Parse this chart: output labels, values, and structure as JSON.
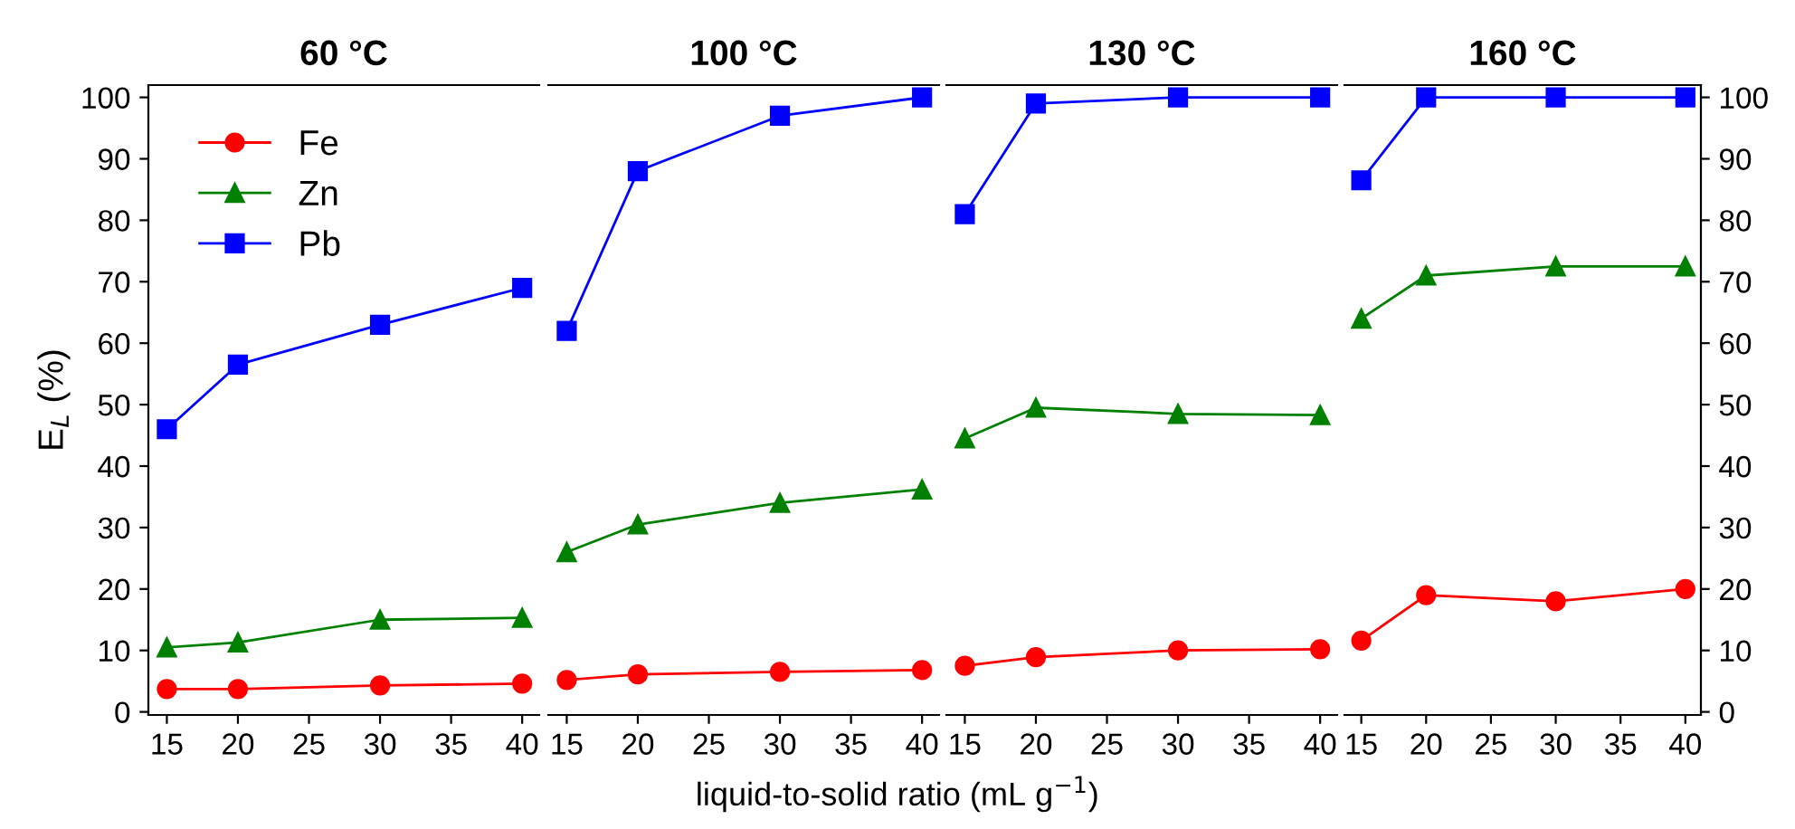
{
  "chart_data": [
    {
      "type": "line",
      "title": "60 °C",
      "ylabel": "E$_{L}$ (%)",
      "xlabel": "liquid-to-solid ratio (mL g$^{−1}$)",
      "x": [
        15,
        20,
        30,
        40
      ],
      "xlim": [
        13.7,
        41.2
      ],
      "xticks": [
        15,
        20,
        25,
        30,
        35,
        40
      ],
      "ylim": [
        -0.5,
        102
      ],
      "yticks": [
        0,
        10,
        20,
        30,
        40,
        50,
        60,
        70,
        80,
        90,
        100
      ],
      "legend": "top left",
      "series": [
        {
          "name": "Fe",
          "color": "#ff0000",
          "marker": "circle",
          "values": [
            3.7,
            3.7,
            4.3,
            4.6
          ]
        },
        {
          "name": "Zn",
          "color": "#008000",
          "marker": "triangle",
          "values": [
            10.5,
            11.3,
            15,
            15.3
          ]
        },
        {
          "name": "Pb",
          "color": "#0000ff",
          "marker": "square",
          "values": [
            46,
            56.5,
            63,
            69
          ]
        }
      ]
    },
    {
      "type": "line",
      "title": "100 °C",
      "x": [
        15,
        20,
        30,
        40
      ],
      "xlim": [
        13.7,
        41.2
      ],
      "xticks": [
        15,
        20,
        25,
        30,
        35,
        40
      ],
      "ylim": [
        -0.5,
        102
      ],
      "tick_labels": "x",
      "series": [
        {
          "color": "#ff0000",
          "marker": "circle",
          "values": [
            5.2,
            6.1,
            6.5,
            6.8
          ]
        },
        {
          "color": "#008000",
          "marker": "triangle",
          "values": [
            26,
            30.5,
            34,
            36.2
          ]
        },
        {
          "color": "#0000ff",
          "marker": "square",
          "values": [
            62,
            88,
            97,
            100
          ]
        }
      ]
    },
    {
      "type": "line",
      "title": "130 °C",
      "x": [
        15,
        20,
        30,
        40
      ],
      "xlim": [
        13.7,
        41.2
      ],
      "xticks": [
        15,
        20,
        25,
        30,
        35,
        40
      ],
      "ylim": [
        -0.5,
        102
      ],
      "tick_labels": "x",
      "series": [
        {
          "color": "#ff0000",
          "marker": "circle",
          "values": [
            7.5,
            8.9,
            10,
            10.2
          ]
        },
        {
          "color": "#008000",
          "marker": "triangle",
          "values": [
            44.5,
            49.5,
            48.5,
            48.3
          ]
        },
        {
          "color": "#0000ff",
          "marker": "square",
          "values": [
            81,
            99,
            100,
            100
          ]
        }
      ]
    },
    {
      "type": "line",
      "title": "160 °C",
      "x": [
        15,
        20,
        30,
        40
      ],
      "xlim": [
        13.7,
        41.2
      ],
      "xticks": [
        15,
        20,
        25,
        30,
        35,
        40
      ],
      "y2lim": [
        -0.5,
        102
      ],
      "y2ticks": [
        0,
        10,
        20,
        30,
        40,
        50,
        60,
        70,
        80,
        90,
        100
      ],
      "series": [
        {
          "axis": "y2",
          "color": "#ff0000",
          "marker": "circle",
          "values": [
            11.6,
            19,
            18,
            20
          ]
        },
        {
          "axis": "y2",
          "color": "#008000",
          "marker": "triangle",
          "values": [
            64,
            71,
            72.5,
            72.5
          ]
        },
        {
          "axis": "y2",
          "color": "#0000ff",
          "marker": "square",
          "values": [
            86.5,
            100,
            100,
            100
          ]
        }
      ]
    }
  ]
}
